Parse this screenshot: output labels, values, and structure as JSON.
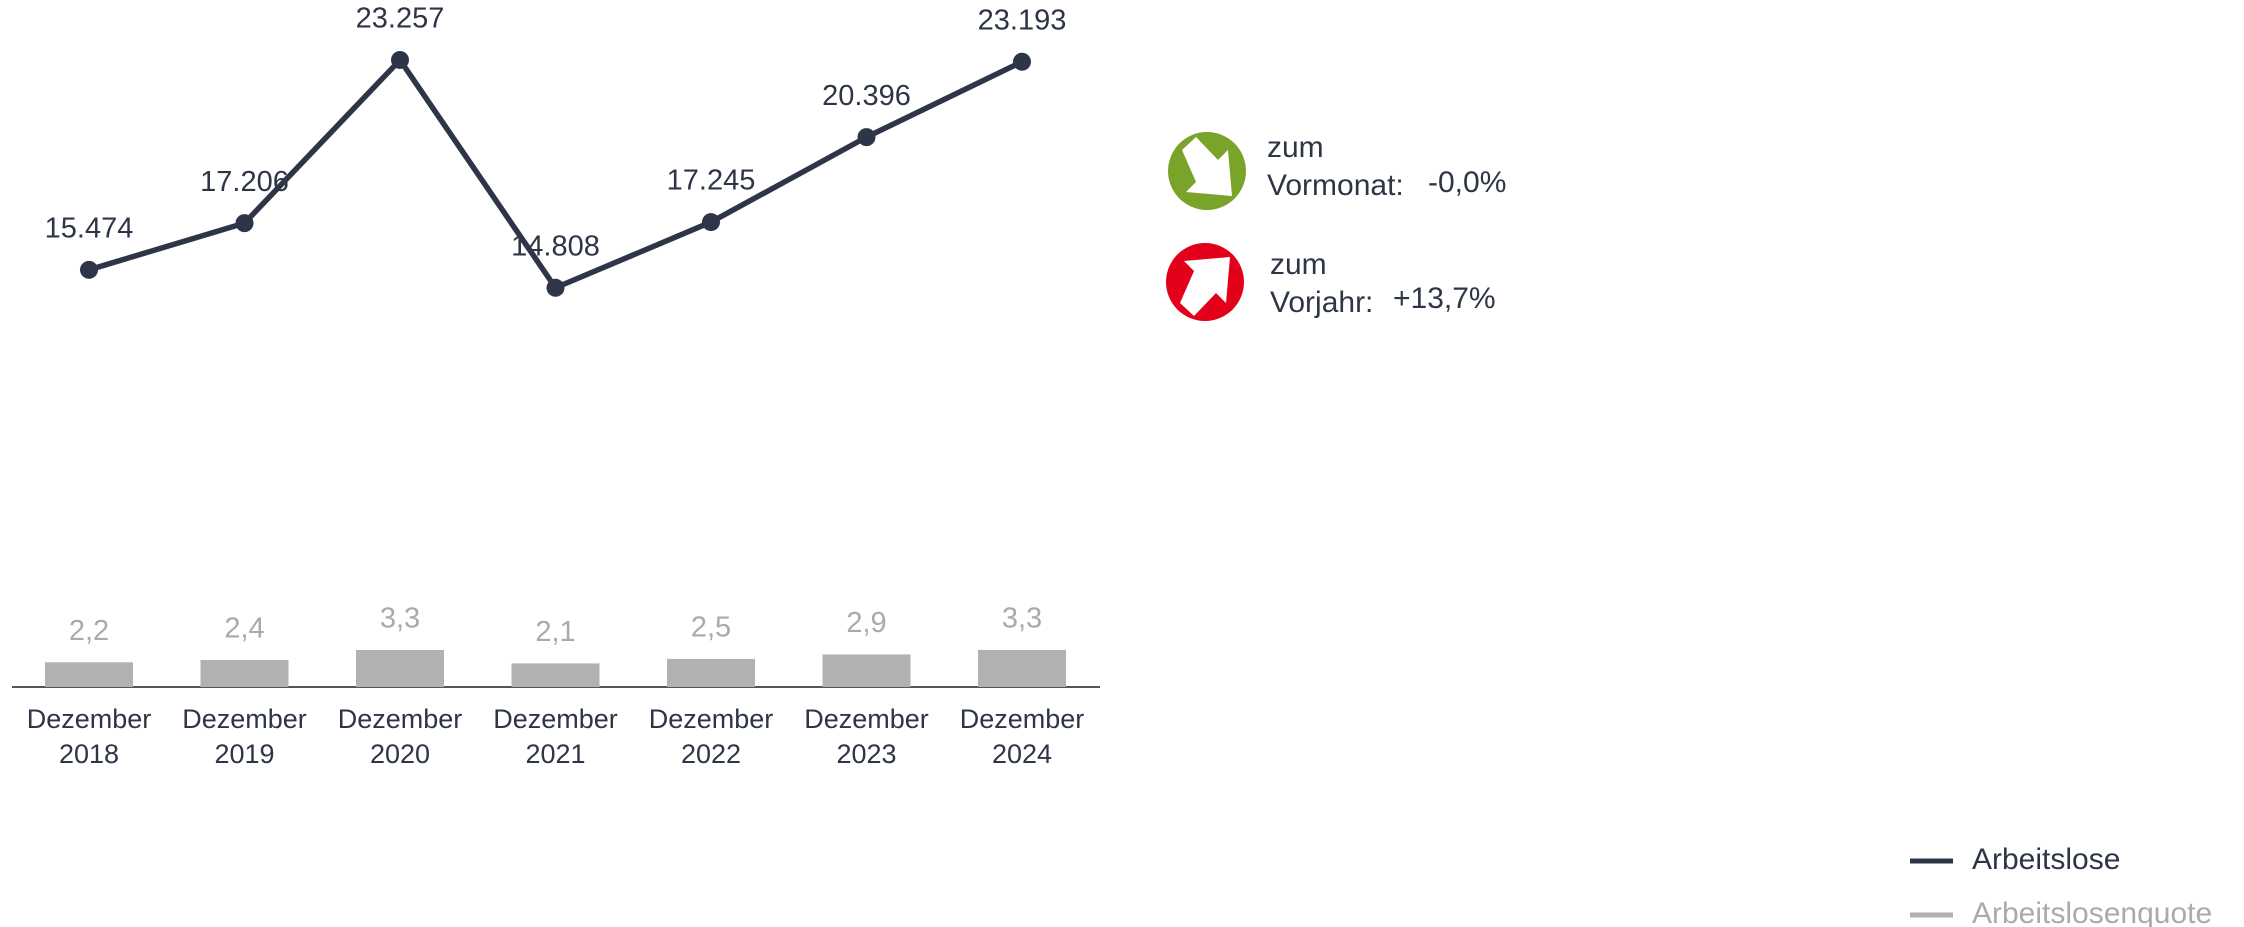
{
  "chart_data": {
    "type": "combo",
    "categories": [
      "Dezember 2018",
      "Dezember 2019",
      "Dezember 2020",
      "Dezember 2021",
      "Dezember 2022",
      "Dezember 2023",
      "Dezember 2024"
    ],
    "ylim": [
      0,
      25000
    ],
    "y2lim": [
      0,
      60
    ],
    "series": [
      {
        "name": "Arbeitslose",
        "type": "line",
        "color": "#2e3547",
        "values": [
          15474,
          17206,
          23257,
          14808,
          17245,
          20396,
          23193
        ],
        "value_labels": [
          "15.474",
          "17.206",
          "23.257",
          "14.808",
          "17.245",
          "20.396",
          "23.193"
        ]
      },
      {
        "name": "Arbeitslosenquote",
        "type": "bar",
        "axis": "y2",
        "color": "#b1b1b1",
        "values": [
          2.2,
          2.4,
          3.3,
          2.1,
          2.5,
          2.9,
          3.3
        ],
        "value_labels": [
          "2,2",
          "2,4",
          "3,3",
          "2,1",
          "2,5",
          "2,9",
          "3,3"
        ]
      }
    ]
  },
  "indicators": [
    {
      "label": "zum Vormonat:",
      "change": "-0,0%"
    },
    {
      "label": "zum Vorjahr:",
      "change": "+13,7%"
    }
  ]
}
